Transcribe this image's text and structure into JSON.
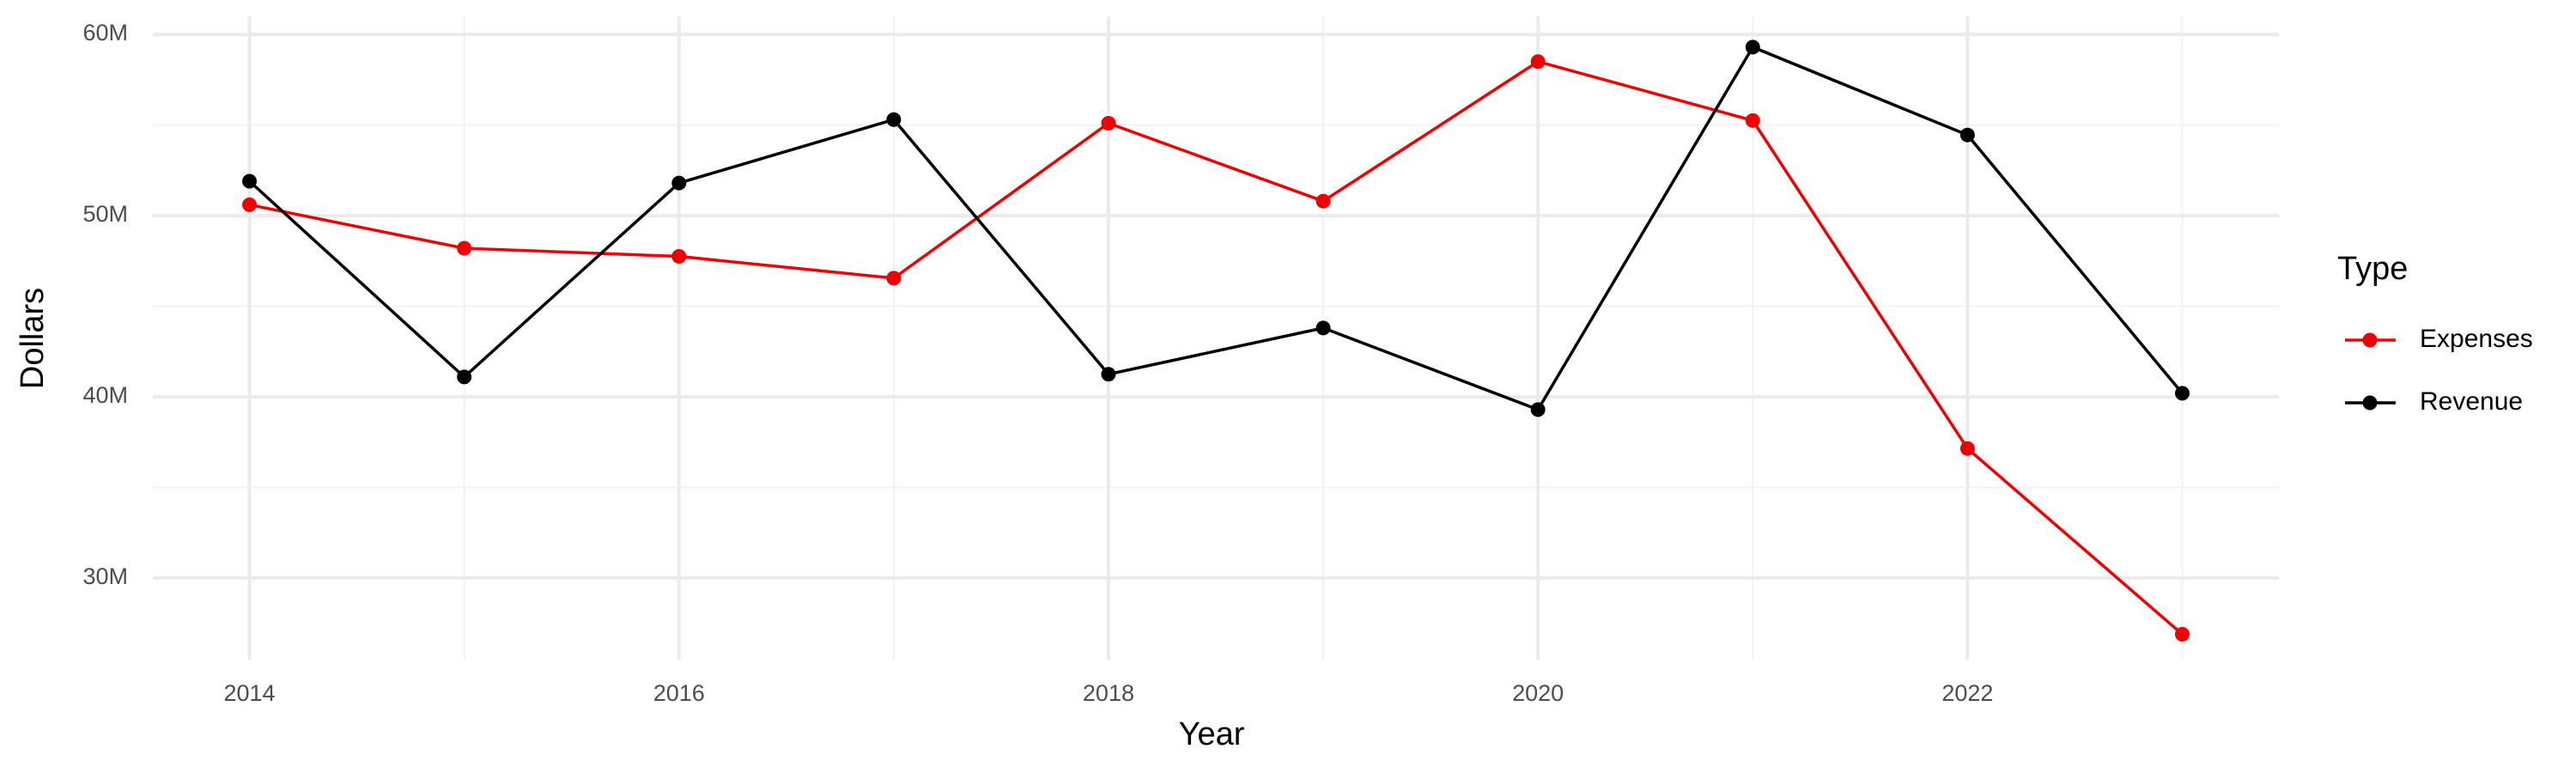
{
  "chart_data": {
    "type": "line",
    "x_label": "Year",
    "y_label": "Dollars",
    "legend_title": "Type",
    "legend": "right",
    "grid": true,
    "x": [
      2014,
      2015,
      2016,
      2017,
      2018,
      2019,
      2020,
      2021,
      2022,
      2023
    ],
    "series": [
      {
        "name": "Expenses",
        "color": "#f00000",
        "values": [
          50600000,
          48200000,
          47750000,
          46550000,
          55100000,
          50800000,
          58500000,
          55250000,
          37150000,
          26900000
        ]
      },
      {
        "name": "Revenue",
        "color": "#000000",
        "values": [
          51900000,
          41100000,
          51800000,
          55300000,
          41250000,
          43800000,
          39300000,
          59300000,
          54450000,
          40200000
        ]
      }
    ],
    "xlim": [
      2013.55,
      2023.45
    ],
    "xticks": [
      2014,
      2016,
      2018,
      2020,
      2022
    ],
    "ylim": [
      25500000,
      61000000
    ],
    "yticks": [
      {
        "value": 30000000,
        "label": "30M"
      },
      {
        "value": 40000000,
        "label": "40M"
      },
      {
        "value": 50000000,
        "label": "50M"
      },
      {
        "value": 60000000,
        "label": "60M"
      }
    ]
  }
}
